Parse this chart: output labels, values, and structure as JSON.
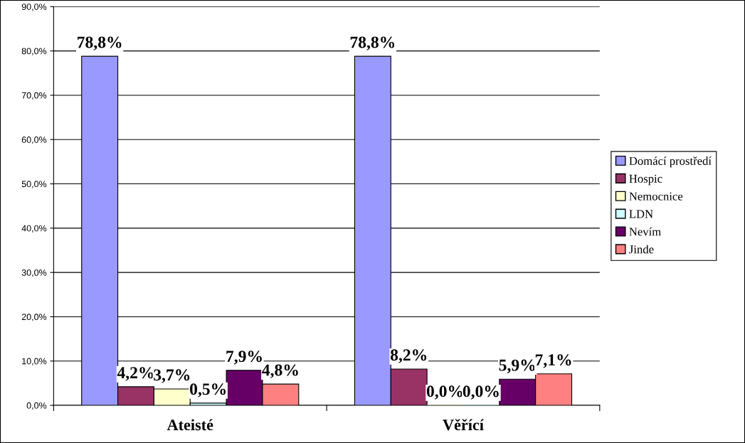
{
  "chart_data": {
    "type": "bar",
    "categories": [
      "Ateisté",
      "Věřící"
    ],
    "series": [
      {
        "name": "Domácí prostředí",
        "color": "#9999ff",
        "values": [
          78.8,
          78.8
        ],
        "value_labels": [
          "78,8%",
          "78,8%"
        ]
      },
      {
        "name": "Hospic",
        "color": "#993366",
        "values": [
          4.2,
          8.2
        ],
        "value_labels": [
          "4,2%",
          "8,2%"
        ]
      },
      {
        "name": "Nemocnice",
        "color": "#ffffcc",
        "values": [
          3.7,
          0.0
        ],
        "value_labels": [
          "3,7%",
          "0,0%"
        ]
      },
      {
        "name": "LDN",
        "color": "#ccffff",
        "values": [
          0.5,
          0.0
        ],
        "value_labels": [
          "0,5%",
          "0,0%"
        ]
      },
      {
        "name": "Nevím",
        "color": "#660066",
        "values": [
          7.9,
          5.9
        ],
        "value_labels": [
          "7,9%",
          "5,9%"
        ]
      },
      {
        "name": "Jinde",
        "color": "#ff8080",
        "values": [
          4.8,
          7.1
        ],
        "value_labels": [
          "4,8%",
          "7,1%"
        ]
      }
    ],
    "ylim": [
      0,
      90
    ],
    "yticks": [
      {
        "value": 0,
        "label": "0,0%"
      },
      {
        "value": 10,
        "label": "10,0%"
      },
      {
        "value": 20,
        "label": "20,0%"
      },
      {
        "value": 30,
        "label": "30,0%"
      },
      {
        "value": 40,
        "label": "40,0%"
      },
      {
        "value": 50,
        "label": "50,0%"
      },
      {
        "value": 60,
        "label": "60,0%"
      },
      {
        "value": 70,
        "label": "70,0%"
      },
      {
        "value": 80,
        "label": "80,0%"
      },
      {
        "value": 90,
        "label": "90,0%"
      }
    ],
    "grid": "y",
    "legend": "right"
  }
}
